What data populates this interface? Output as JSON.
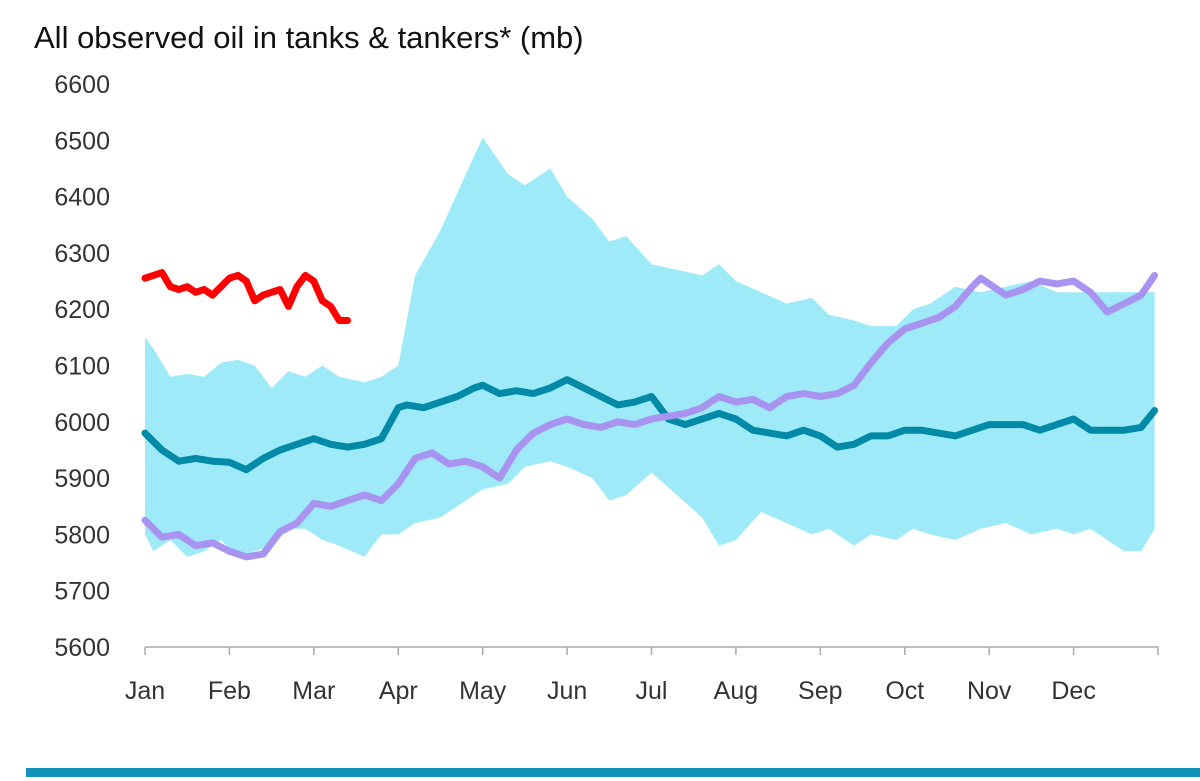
{
  "chart_data": {
    "type": "line",
    "title": "All observed oil in tanks & tankers* (mb)",
    "xlabel": "",
    "ylabel": "",
    "ylim": [
      5600,
      6600
    ],
    "yticks": [
      5600,
      5700,
      5800,
      5900,
      6000,
      6100,
      6200,
      6300,
      6400,
      6500,
      6600
    ],
    "xlim": [
      0,
      12
    ],
    "xticks": [
      {
        "x": 0,
        "label": "Jan"
      },
      {
        "x": 1,
        "label": "Feb"
      },
      {
        "x": 2,
        "label": "Mar"
      },
      {
        "x": 3,
        "label": "Apr"
      },
      {
        "x": 4,
        "label": "May"
      },
      {
        "x": 5,
        "label": "Jun"
      },
      {
        "x": 6,
        "label": "Jul"
      },
      {
        "x": 7,
        "label": "Aug"
      },
      {
        "x": 8,
        "label": "Sep"
      },
      {
        "x": 9,
        "label": "Oct"
      },
      {
        "x": 10,
        "label": "Nov"
      },
      {
        "x": 11,
        "label": "Dec"
      }
    ],
    "grid": false,
    "legend": "none",
    "range_band": {
      "color": "#9eeaf9",
      "x": [
        0,
        0.1,
        0.3,
        0.5,
        0.7,
        0.9,
        1.1,
        1.3,
        1.5,
        1.7,
        1.9,
        2.1,
        2.3,
        2.6,
        2.8,
        3.0,
        3.2,
        3.5,
        3.8,
        4.0,
        4.3,
        4.5,
        4.8,
        5.0,
        5.3,
        5.5,
        5.7,
        6.0,
        6.3,
        6.6,
        6.8,
        7.0,
        7.3,
        7.6,
        7.9,
        8.1,
        8.4,
        8.6,
        8.9,
        9.1,
        9.3,
        9.6,
        9.9,
        10.2,
        10.5,
        10.8,
        11.0,
        11.2,
        11.4,
        11.6,
        11.8,
        11.96
      ],
      "upper": [
        6150,
        6130,
        6080,
        6085,
        6080,
        6105,
        6110,
        6100,
        6060,
        6090,
        6080,
        6100,
        6080,
        6070,
        6080,
        6100,
        6260,
        6340,
        6440,
        6505,
        6440,
        6420,
        6450,
        6400,
        6360,
        6320,
        6330,
        6280,
        6270,
        6260,
        6280,
        6250,
        6230,
        6210,
        6220,
        6190,
        6180,
        6170,
        6170,
        6200,
        6210,
        6240,
        6230,
        6240,
        6250,
        6230,
        6230,
        6230,
        6230,
        6230,
        6230,
        6230
      ],
      "lower": [
        5800,
        5770,
        5790,
        5760,
        5770,
        5790,
        5760,
        5770,
        5780,
        5810,
        5810,
        5790,
        5780,
        5760,
        5800,
        5800,
        5820,
        5830,
        5860,
        5880,
        5890,
        5920,
        5930,
        5920,
        5900,
        5860,
        5870,
        5910,
        5870,
        5830,
        5780,
        5790,
        5840,
        5820,
        5800,
        5810,
        5780,
        5800,
        5790,
        5810,
        5800,
        5790,
        5810,
        5820,
        5800,
        5810,
        5800,
        5810,
        5790,
        5770,
        5770,
        5810
      ]
    },
    "series": [
      {
        "color": "#008aa8",
        "x": [
          0,
          0.2,
          0.4,
          0.6,
          0.8,
          1.0,
          1.2,
          1.4,
          1.6,
          1.8,
          2.0,
          2.2,
          2.4,
          2.6,
          2.8,
          3.0,
          3.1,
          3.3,
          3.5,
          3.7,
          3.9,
          4.0,
          4.2,
          4.4,
          4.6,
          4.8,
          5.0,
          5.2,
          5.4,
          5.6,
          5.8,
          6.0,
          6.2,
          6.4,
          6.6,
          6.8,
          7.0,
          7.2,
          7.4,
          7.6,
          7.8,
          8.0,
          8.2,
          8.4,
          8.6,
          8.8,
          9.0,
          9.2,
          9.4,
          9.6,
          9.8,
          10.0,
          10.2,
          10.4,
          10.6,
          10.8,
          11.0,
          11.2,
          11.4,
          11.6,
          11.8,
          11.96
        ],
        "values": [
          5980,
          5950,
          5930,
          5935,
          5930,
          5928,
          5915,
          5935,
          5950,
          5960,
          5970,
          5960,
          5955,
          5960,
          5970,
          6025,
          6030,
          6025,
          6035,
          6045,
          6060,
          6065,
          6050,
          6055,
          6050,
          6060,
          6075,
          6060,
          6045,
          6030,
          6035,
          6045,
          6005,
          5995,
          6005,
          6015,
          6005,
          5985,
          5980,
          5975,
          5985,
          5975,
          5955,
          5960,
          5975,
          5975,
          5985,
          5985,
          5980,
          5975,
          5985,
          5995,
          5995,
          5995,
          5985,
          5995,
          6005,
          5985,
          5985,
          5985,
          5990,
          6020
        ]
      },
      {
        "color": "#a993f0",
        "x": [
          0,
          0.2,
          0.4,
          0.6,
          0.8,
          1.0,
          1.2,
          1.4,
          1.6,
          1.8,
          2.0,
          2.2,
          2.4,
          2.6,
          2.8,
          3.0,
          3.2,
          3.4,
          3.6,
          3.8,
          4.0,
          4.2,
          4.4,
          4.6,
          4.8,
          5.0,
          5.2,
          5.4,
          5.6,
          5.8,
          6.0,
          6.2,
          6.4,
          6.6,
          6.8,
          7.0,
          7.2,
          7.4,
          7.6,
          7.8,
          8.0,
          8.2,
          8.4,
          8.6,
          8.8,
          9.0,
          9.2,
          9.4,
          9.6,
          9.8,
          9.9,
          10.0,
          10.2,
          10.4,
          10.6,
          10.8,
          11.0,
          11.2,
          11.4,
          11.6,
          11.8,
          11.96
        ],
        "values": [
          5825,
          5795,
          5800,
          5780,
          5785,
          5770,
          5760,
          5765,
          5805,
          5820,
          5855,
          5850,
          5860,
          5870,
          5860,
          5890,
          5935,
          5945,
          5925,
          5930,
          5920,
          5900,
          5950,
          5980,
          5995,
          6005,
          5995,
          5990,
          6000,
          5995,
          6005,
          6010,
          6015,
          6025,
          6045,
          6035,
          6040,
          6025,
          6045,
          6050,
          6045,
          6050,
          6065,
          6105,
          6140,
          6165,
          6175,
          6185,
          6205,
          6240,
          6255,
          6245,
          6225,
          6235,
          6250,
          6245,
          6250,
          6230,
          6195,
          6210,
          6225,
          6260
        ]
      },
      {
        "color": "#ff0000",
        "x": [
          0,
          0.1,
          0.2,
          0.3,
          0.4,
          0.5,
          0.6,
          0.7,
          0.8,
          0.9,
          1.0,
          1.1,
          1.2,
          1.3,
          1.4,
          1.5,
          1.6,
          1.7,
          1.8,
          1.9,
          2.0,
          2.1,
          2.2,
          2.3,
          2.4
        ],
        "values": [
          6255,
          6260,
          6265,
          6240,
          6235,
          6240,
          6230,
          6235,
          6225,
          6240,
          6255,
          6260,
          6250,
          6215,
          6225,
          6230,
          6235,
          6205,
          6240,
          6260,
          6250,
          6215,
          6205,
          6180,
          6180
        ]
      }
    ]
  },
  "bottom_bar_color": "#1291ba"
}
